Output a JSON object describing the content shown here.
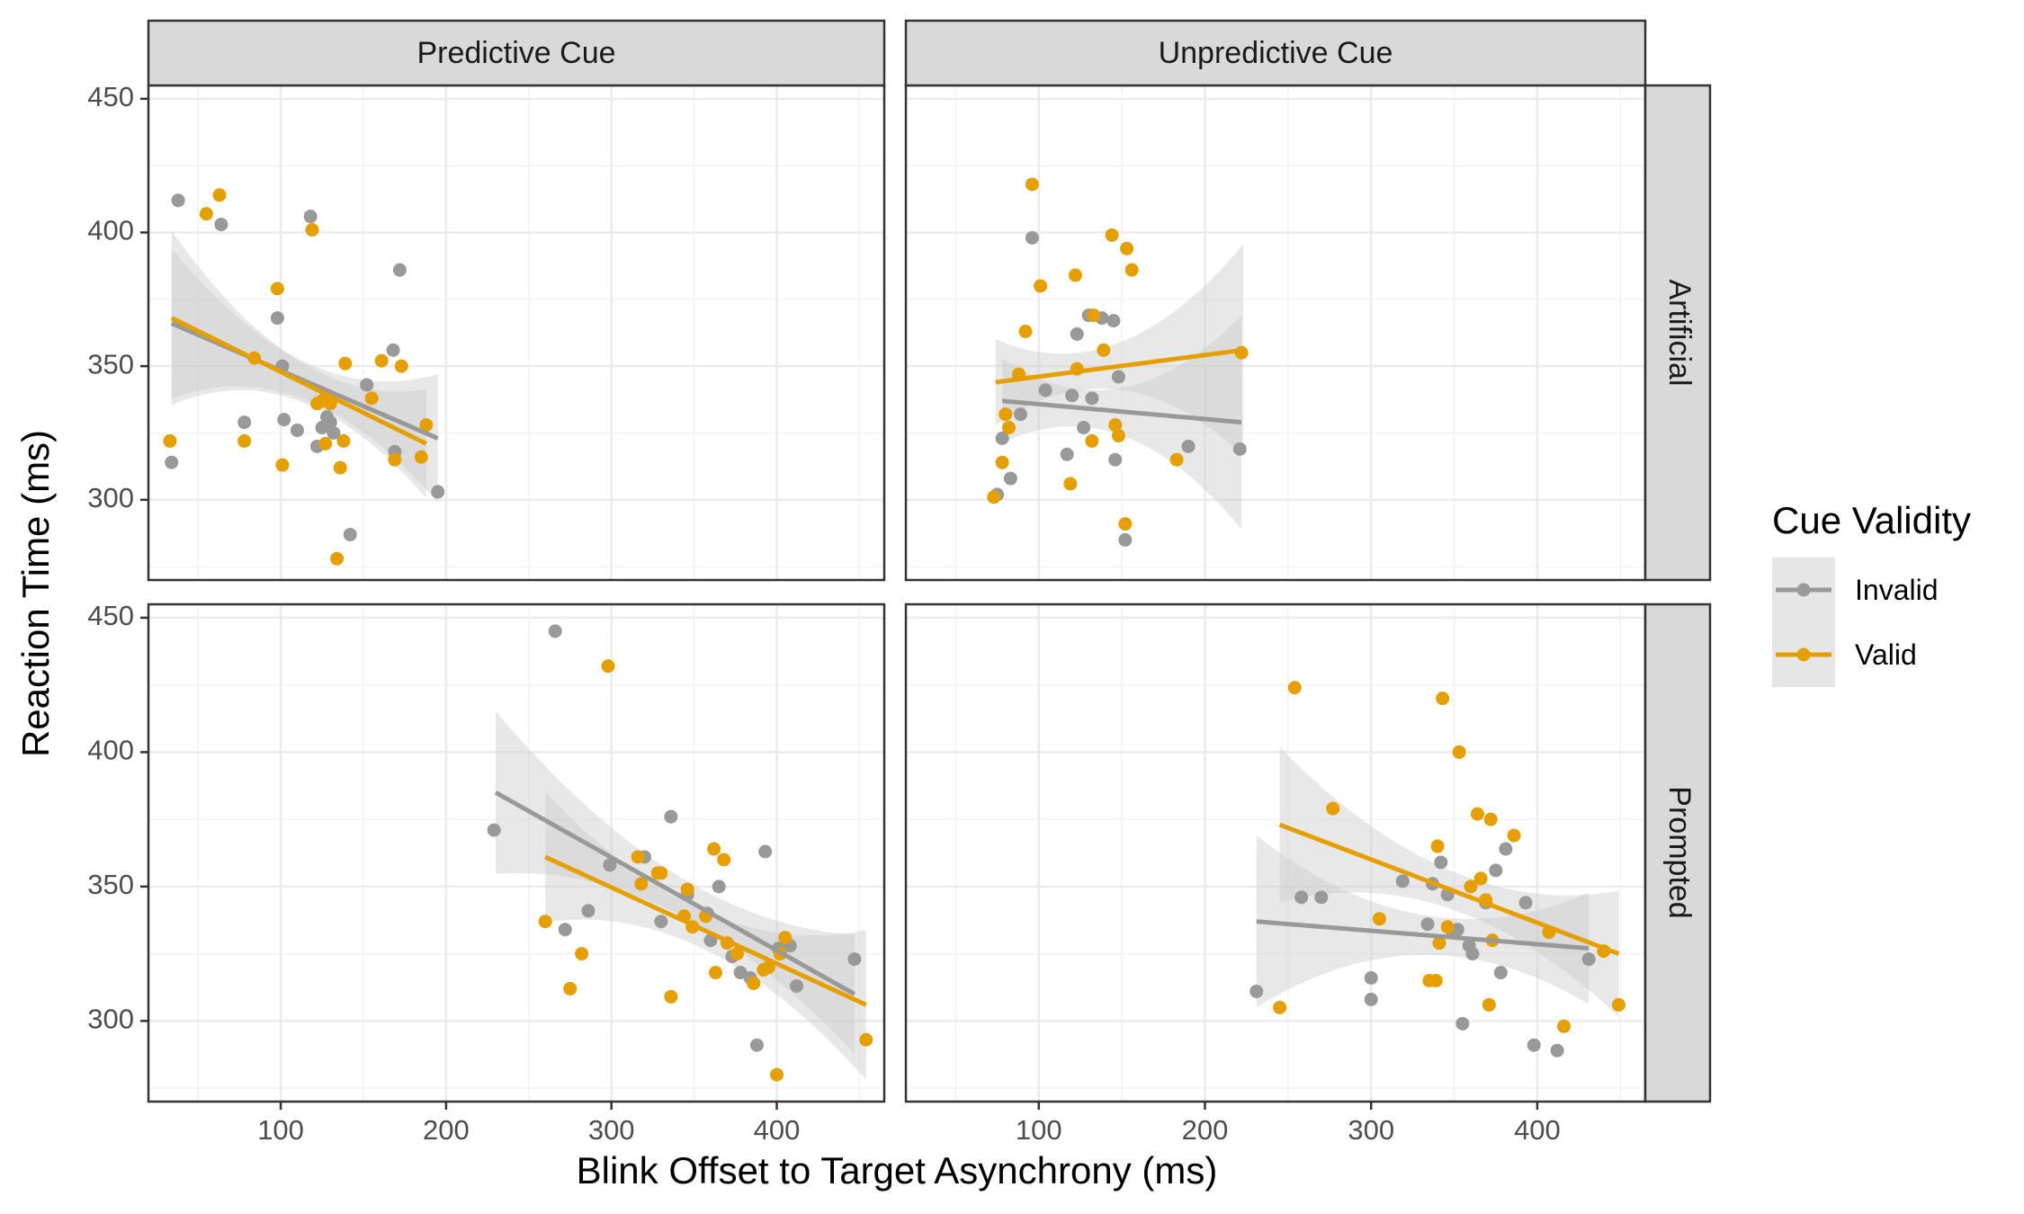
{
  "chart_data": {
    "type": "scatter",
    "xlabel": "Blink Offset to Target Asynchrony (ms)",
    "ylabel": "Reaction Time (ms)",
    "xlim": [
      20,
      465
    ],
    "ylim": [
      270,
      455
    ],
    "x_ticks": [
      100,
      200,
      300,
      400
    ],
    "y_ticks": [
      300,
      350,
      400,
      450
    ],
    "col_facets": [
      "Predictive Cue",
      "Unpredictive Cue"
    ],
    "row_facets": [
      "Artificial",
      "Prompted"
    ],
    "legend": {
      "title": "Cue Validity",
      "position": "right",
      "entries": [
        "Invalid",
        "Valid"
      ]
    },
    "colors": {
      "Invalid": "#999999",
      "Valid": "#E69F00",
      "band": "#CCCCCC",
      "strip": "#D9D9D9"
    },
    "grid": true,
    "panels": [
      {
        "col": "Predictive Cue",
        "row": "Artificial",
        "series": [
          {
            "group": "Invalid",
            "points": [
              [
                34,
                314
              ],
              [
                38,
                412
              ],
              [
                64,
                403
              ],
              [
                78,
                329
              ],
              [
                98,
                368
              ],
              [
                101,
                350
              ],
              [
                102,
                330
              ],
              [
                110,
                326
              ],
              [
                118,
                406
              ],
              [
                122,
                320
              ],
              [
                125,
                327
              ],
              [
                128,
                331
              ],
              [
                130,
                329
              ],
              [
                132,
                325
              ],
              [
                142,
                287
              ],
              [
                152,
                343
              ],
              [
                168,
                356
              ],
              [
                169,
                318
              ],
              [
                172,
                386
              ],
              [
                195,
                303
              ]
            ],
            "fit": [
              [
                34,
                366
              ],
              [
                195,
                323
              ]
            ]
          },
          {
            "group": "Valid",
            "points": [
              [
                33,
                322
              ],
              [
                55,
                407
              ],
              [
                63,
                414
              ],
              [
                78,
                322
              ],
              [
                84,
                353
              ],
              [
                98,
                379
              ],
              [
                101,
                313
              ],
              [
                119,
                401
              ],
              [
                122,
                336
              ],
              [
                125,
                337
              ],
              [
                127,
                321
              ],
              [
                130,
                336
              ],
              [
                134,
                278
              ],
              [
                136,
                312
              ],
              [
                138,
                322
              ],
              [
                139,
                351
              ],
              [
                155,
                338
              ],
              [
                161,
                352
              ],
              [
                169,
                315
              ],
              [
                173,
                350
              ],
              [
                185,
                316
              ],
              [
                188,
                328
              ]
            ],
            "fit": [
              [
                34,
                368
              ],
              [
                188,
                321
              ]
            ]
          }
        ]
      },
      {
        "col": "Unpredictive Cue",
        "row": "Artificial",
        "series": [
          {
            "group": "Invalid",
            "points": [
              [
                75,
                302
              ],
              [
                78,
                323
              ],
              [
                83,
                308
              ],
              [
                89,
                332
              ],
              [
                96,
                398
              ],
              [
                104,
                341
              ],
              [
                117,
                317
              ],
              [
                120,
                339
              ],
              [
                123,
                362
              ],
              [
                127,
                327
              ],
              [
                130,
                369
              ],
              [
                132,
                338
              ],
              [
                138,
                368
              ],
              [
                145,
                367
              ],
              [
                146,
                315
              ],
              [
                148,
                346
              ],
              [
                152,
                285
              ],
              [
                190,
                320
              ],
              [
                221,
                319
              ]
            ],
            "fit": [
              [
                78,
                337
              ],
              [
                222,
                329
              ]
            ]
          },
          {
            "group": "Valid",
            "points": [
              [
                73,
                301
              ],
              [
                78,
                314
              ],
              [
                80,
                332
              ],
              [
                82,
                327
              ],
              [
                88,
                347
              ],
              [
                92,
                363
              ],
              [
                96,
                418
              ],
              [
                101,
                380
              ],
              [
                119,
                306
              ],
              [
                122,
                384
              ],
              [
                123,
                349
              ],
              [
                132,
                322
              ],
              [
                133,
                369
              ],
              [
                139,
                356
              ],
              [
                144,
                399
              ],
              [
                146,
                328
              ],
              [
                148,
                324
              ],
              [
                152,
                291
              ],
              [
                153,
                394
              ],
              [
                156,
                386
              ],
              [
                183,
                315
              ],
              [
                222,
                355
              ]
            ],
            "fit": [
              [
                74,
                344
              ],
              [
                223,
                356
              ]
            ]
          }
        ]
      },
      {
        "col": "Predictive Cue",
        "row": "Prompted",
        "series": [
          {
            "group": "Invalid",
            "points": [
              [
                229,
                371
              ],
              [
                266,
                445
              ],
              [
                272,
                334
              ],
              [
                286,
                341
              ],
              [
                299,
                358
              ],
              [
                320,
                361
              ],
              [
                330,
                337
              ],
              [
                336,
                376
              ],
              [
                346,
                347
              ],
              [
                358,
                340
              ],
              [
                360,
                330
              ],
              [
                365,
                350
              ],
              [
                373,
                324
              ],
              [
                378,
                318
              ],
              [
                384,
                316
              ],
              [
                393,
                363
              ],
              [
                401,
                327
              ],
              [
                408,
                328
              ],
              [
                412,
                313
              ],
              [
                388,
                291
              ],
              [
                447,
                323
              ]
            ],
            "fit": [
              [
                230,
                385
              ],
              [
                447,
                310
              ]
            ]
          },
          {
            "group": "Valid",
            "points": [
              [
                260,
                337
              ],
              [
                275,
                312
              ],
              [
                282,
                325
              ],
              [
                298,
                432
              ],
              [
                316,
                361
              ],
              [
                318,
                351
              ],
              [
                328,
                355
              ],
              [
                330,
                355
              ],
              [
                336,
                309
              ],
              [
                344,
                339
              ],
              [
                346,
                349
              ],
              [
                349,
                335
              ],
              [
                357,
                339
              ],
              [
                362,
                364
              ],
              [
                363,
                318
              ],
              [
                368,
                360
              ],
              [
                370,
                329
              ],
              [
                376,
                325
              ],
              [
                386,
                314
              ],
              [
                392,
                319
              ],
              [
                395,
                320
              ],
              [
                400,
                280
              ],
              [
                402,
                325
              ],
              [
                405,
                331
              ],
              [
                454,
                293
              ]
            ],
            "fit": [
              [
                260,
                361
              ],
              [
                454,
                306
              ]
            ]
          }
        ]
      },
      {
        "col": "Unpredictive Cue",
        "row": "Prompted",
        "series": [
          {
            "group": "Invalid",
            "points": [
              [
                231,
                311
              ],
              [
                258,
                346
              ],
              [
                270,
                346
              ],
              [
                300,
                316
              ],
              [
                300,
                308
              ],
              [
                319,
                352
              ],
              [
                334,
                336
              ],
              [
                337,
                351
              ],
              [
                342,
                359
              ],
              [
                346,
                347
              ],
              [
                349,
                333
              ],
              [
                352,
                334
              ],
              [
                355,
                299
              ],
              [
                359,
                328
              ],
              [
                361,
                325
              ],
              [
                369,
                344
              ],
              [
                375,
                356
              ],
              [
                378,
                318
              ],
              [
                381,
                364
              ],
              [
                393,
                344
              ],
              [
                398,
                291
              ],
              [
                412,
                289
              ],
              [
                431,
                323
              ]
            ],
            "fit": [
              [
                231,
                337
              ],
              [
                431,
                327
              ]
            ]
          },
          {
            "group": "Valid",
            "points": [
              [
                245,
                305
              ],
              [
                254,
                424
              ],
              [
                277,
                379
              ],
              [
                305,
                338
              ],
              [
                335,
                315
              ],
              [
                339,
                315
              ],
              [
                340,
                365
              ],
              [
                341,
                329
              ],
              [
                343,
                420
              ],
              [
                346,
                335
              ],
              [
                353,
                400
              ],
              [
                360,
                350
              ],
              [
                364,
                377
              ],
              [
                366,
                353
              ],
              [
                369,
                345
              ],
              [
                371,
                306
              ],
              [
                372,
                375
              ],
              [
                373,
                330
              ],
              [
                386,
                369
              ],
              [
                407,
                333
              ],
              [
                416,
                298
              ],
              [
                449,
                306
              ],
              [
                440,
                326
              ]
            ],
            "fit": [
              [
                245,
                373
              ],
              [
                449,
                325
              ]
            ]
          }
        ]
      }
    ]
  }
}
